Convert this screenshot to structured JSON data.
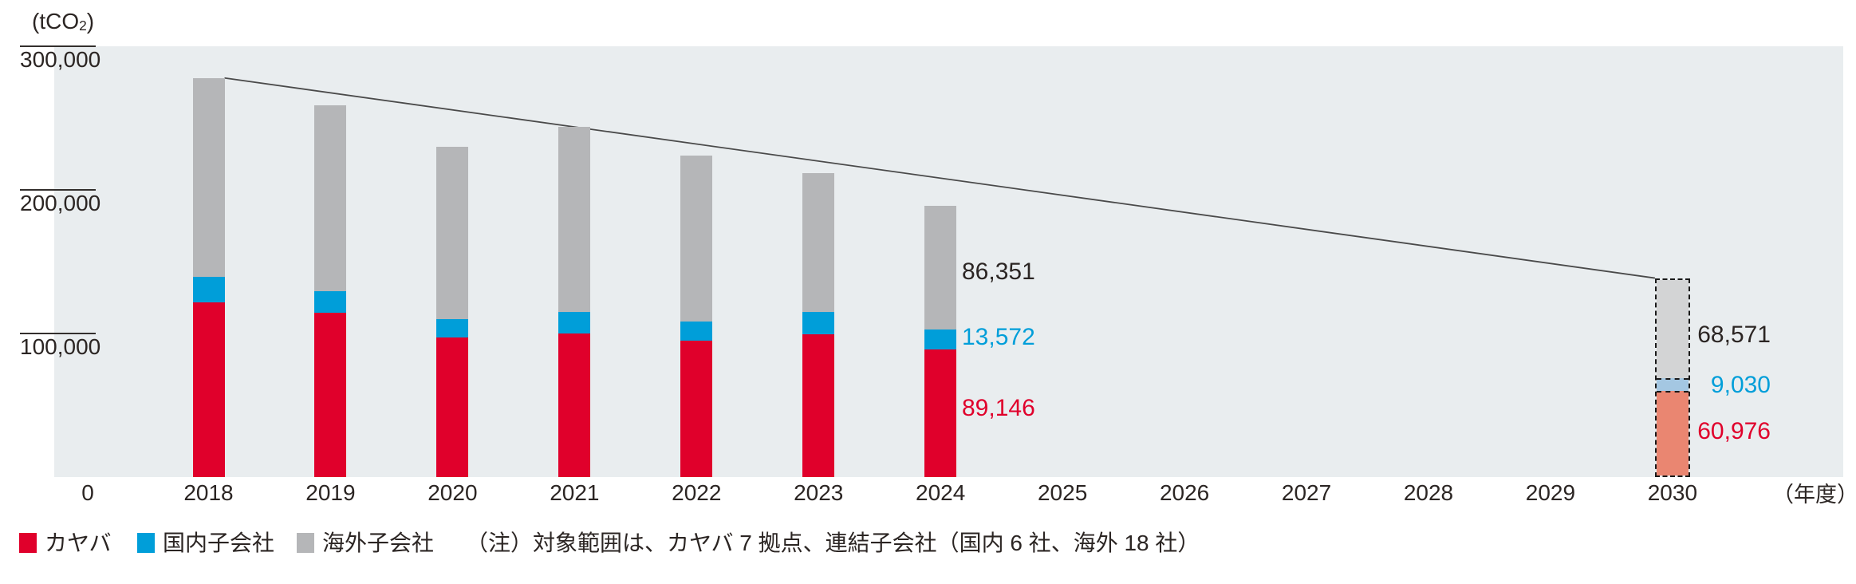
{
  "unit_label": {
    "prefix": "(tCO",
    "sub": "2",
    "suffix": ")"
  },
  "x_axis": {
    "zero_label": "0",
    "suffix_label": "（年度）"
  },
  "y_axis": {
    "tick_values": [
      300000,
      200000,
      100000
    ],
    "tick_labels": [
      "300,000",
      "200,000",
      "100,000"
    ]
  },
  "legend": {
    "items": [
      {
        "label": "カヤバ",
        "color": "#e0002b"
      },
      {
        "label": "国内子会社",
        "color": "#009ed9"
      },
      {
        "label": "海外子会社",
        "color": "#b5b6b8"
      }
    ]
  },
  "note": {
    "text": "（注）対象範囲は、カヤバ 7 拠点、連結子会社（国内 6 社、海外 18 社）"
  },
  "colors": {
    "plot_background": "#e9edef",
    "kayaba_red": "#e0002b",
    "domestic_blue": "#009ed9",
    "overseas_gray": "#b5b6b8",
    "projected_red": "#ea8671",
    "projected_blue": "#a4c7e2",
    "projected_gray": "#d3d4d5",
    "trend_line": "#4a4a4a",
    "dark_text": "#2b2523"
  },
  "chart_data": {
    "type": "bar",
    "stacked": true,
    "title": "",
    "ylabel": "tCO2",
    "xlabel": "年度",
    "ylim": [
      0,
      300000
    ],
    "yticks": [
      0,
      100000,
      200000,
      300000
    ],
    "grid": false,
    "legend_position": "bottom-left",
    "categories": [
      "2018",
      "2019",
      "2020",
      "2021",
      "2022",
      "2023",
      "2024",
      "2025",
      "2026",
      "2027",
      "2028",
      "2029",
      "2030"
    ],
    "series": [
      {
        "name": "カヤバ",
        "key": "kayaba",
        "color": "#e0002b",
        "projected_color": "#ea8671",
        "values": [
          121700,
          114300,
          97100,
          99800,
          95200,
          99300,
          89146,
          null,
          null,
          null,
          null,
          null,
          60976
        ]
      },
      {
        "name": "国内子会社",
        "key": "domestic",
        "color": "#009ed9",
        "projected_color": "#a4c7e2",
        "values": [
          17900,
          15100,
          12900,
          15200,
          13000,
          15700,
          13572,
          null,
          null,
          null,
          null,
          null,
          9030
        ]
      },
      {
        "name": "海外子会社",
        "key": "overseas",
        "color": "#b5b6b8",
        "projected_color": "#d3d4d5",
        "values": [
          138300,
          129700,
          120000,
          128900,
          115900,
          96800,
          86351,
          null,
          null,
          null,
          null,
          null,
          68571
        ]
      }
    ],
    "values_estimated_for": [
      "2018",
      "2019",
      "2020",
      "2021",
      "2022",
      "2023"
    ],
    "projected_category": "2030",
    "data_labels": {
      "2024": [
        {
          "text": "86,351",
          "series": "overseas",
          "color": "dark"
        },
        {
          "text": "13,572",
          "series": "domestic",
          "color": "blue"
        },
        {
          "text": "89,146",
          "series": "kayaba",
          "color": "red"
        }
      ],
      "2030": [
        {
          "text": "68,571",
          "series": "overseas",
          "color": "dark"
        },
        {
          "text": "9,030",
          "series": "domestic",
          "color": "blue"
        },
        {
          "text": "60,976",
          "series": "kayaba",
          "color": "red"
        }
      ]
    },
    "trend_line": {
      "from_category": "2018",
      "to_category": "2030"
    }
  }
}
